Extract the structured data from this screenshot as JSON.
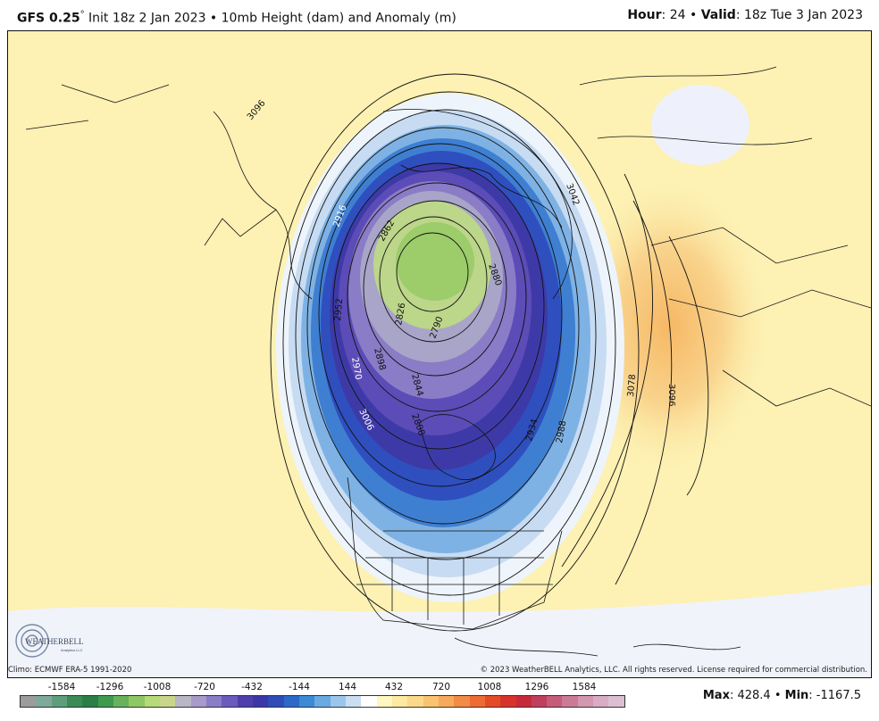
{
  "header": {
    "model": "GFS 0.25",
    "degree": "°",
    "init_text": " Init 18z 2 Jan 2023 • 10mb Height (dam) and Anomaly (m)",
    "hour_label": "Hour",
    "hour_value": ": 24 • ",
    "valid_label": "Valid",
    "valid_value": ": 18z Tue 3 Jan 2023"
  },
  "map": {
    "contour_labels": [
      "2862",
      "2826",
      "2790",
      "2844",
      "2808",
      "2952",
      "2898",
      "2970",
      "3006",
      "2934",
      "2988",
      "3078",
      "3096",
      "3042",
      "3096",
      "2916",
      "2880"
    ]
  },
  "logo": {
    "text": "WEATHERBELL",
    "subtext": "Analytics LLC"
  },
  "footer": {
    "climo": "Climo: ECMWF ERA-5 1991-2020",
    "copyright": "© 2023 WeatherBELL Analytics, LLC. All rights reserved. License required for commercial distribution."
  },
  "legend": {
    "ticks": [
      "-1584",
      "-1296",
      "-1008",
      "-720",
      "-432",
      "-144",
      "144",
      "432",
      "720",
      "1008",
      "1296",
      "1584"
    ],
    "colors": [
      "#9c9c9c",
      "#7fa99a",
      "#5e9e7c",
      "#3b8a58",
      "#2a7f46",
      "#3f9a4d",
      "#67b25a",
      "#8dc864",
      "#b6da77",
      "#c9d68a",
      "#b9b7c6",
      "#a89ac9",
      "#8a7cc6",
      "#6a5bbd",
      "#4e3fae",
      "#3b37a8",
      "#2f4bb8",
      "#2c68c8",
      "#3a8ad6",
      "#6aa9e2",
      "#9bc6ec",
      "#c9def2",
      "#ffffff",
      "#fff7c2",
      "#fde9a0",
      "#fbd98a",
      "#f9c370",
      "#f7aa5c",
      "#f38a45",
      "#ee6b33",
      "#e44b28",
      "#d8332a",
      "#c62a3a",
      "#c03f5c",
      "#c65b7a",
      "#cc7b97",
      "#d497b0",
      "#d8acc4",
      "#dcbfd3"
    ]
  },
  "stats": {
    "max_label": "Max",
    "max_value": ": 428.4 • ",
    "min_label": "Min",
    "min_value": ": -1167.5"
  }
}
